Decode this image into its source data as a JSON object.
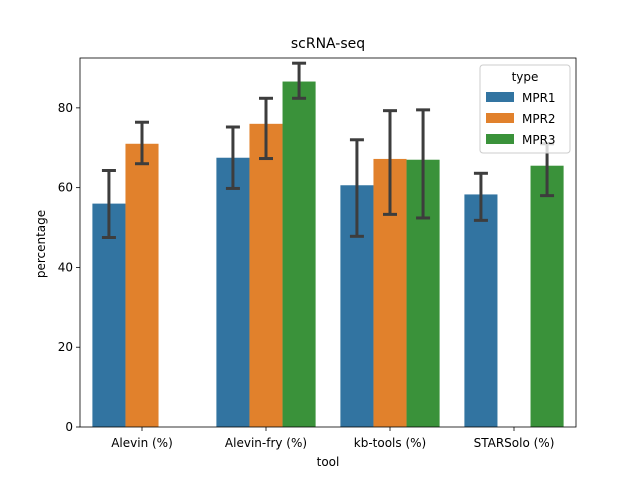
{
  "chart_data": {
    "type": "bar",
    "title": "scRNA-seq",
    "xlabel": "tool",
    "ylabel": "percentage",
    "categories": [
      "Alevin (%)",
      "Alevin-fry (%)",
      "kb-tools (%)",
      "STARSolo (%)"
    ],
    "ylim": [
      0,
      92.5
    ],
    "yticks": [
      0,
      20,
      40,
      60,
      80
    ],
    "grid": false,
    "legend": {
      "title": "type",
      "placement": "top-right"
    },
    "series": [
      {
        "name": "MPR1",
        "color": "#3274a1",
        "values": [
          56.0,
          67.5,
          60.6,
          58.3
        ],
        "error_low": [
          47.5,
          59.8,
          47.8,
          51.8
        ],
        "error_high": [
          64.3,
          75.2,
          72.0,
          63.6
        ]
      },
      {
        "name": "MPR2",
        "color": "#e1812c",
        "values": [
          71.0,
          76.0,
          67.2,
          null
        ],
        "error_low": [
          66.0,
          67.3,
          53.3,
          null
        ],
        "error_high": [
          76.4,
          82.4,
          79.3,
          null
        ]
      },
      {
        "name": "MPR3",
        "color": "#3a923a",
        "values": [
          null,
          86.6,
          67.0,
          65.5
        ],
        "error_low": [
          null,
          82.4,
          52.4,
          58.0
        ],
        "error_high": [
          null,
          91.2,
          79.5,
          71.0
        ]
      }
    ]
  }
}
